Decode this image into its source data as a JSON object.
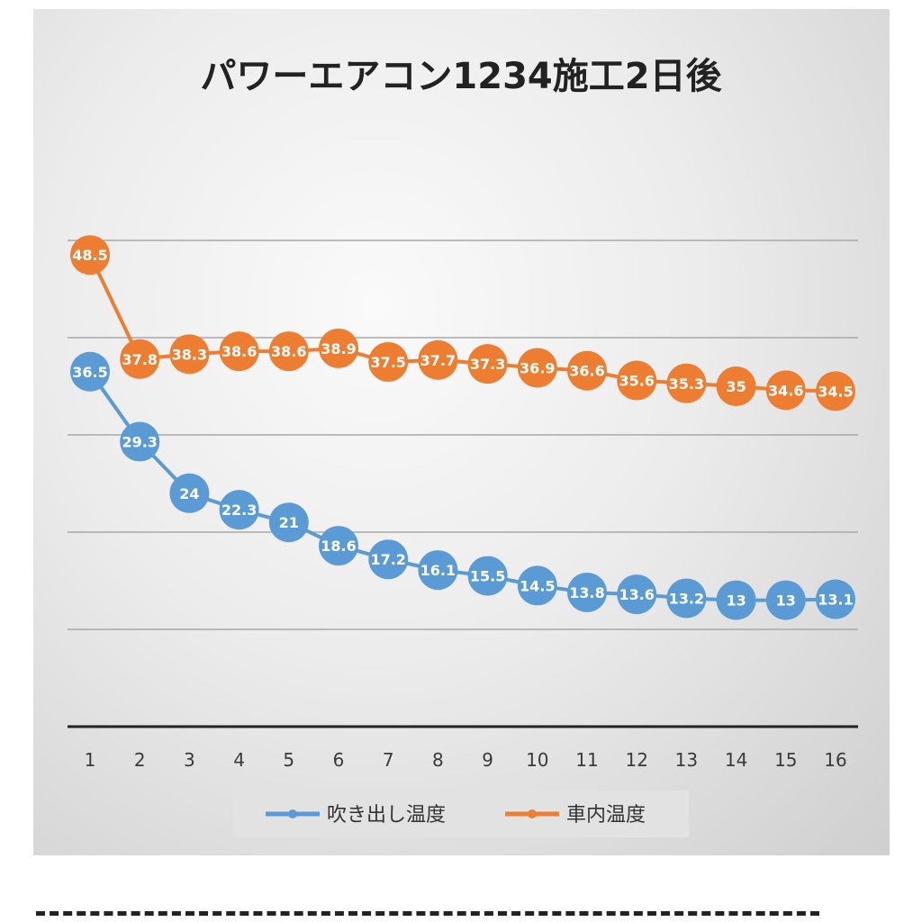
{
  "chart_data": {
    "type": "line",
    "title": "パワーエアコン1234施工2日後",
    "xlabel": "",
    "ylabel": "",
    "categories": [
      "1",
      "2",
      "3",
      "4",
      "5",
      "6",
      "7",
      "8",
      "9",
      "10",
      "11",
      "12",
      "13",
      "14",
      "15",
      "16"
    ],
    "ylim": [
      0,
      60
    ],
    "y_gridlines": [
      10,
      20,
      30,
      40,
      50
    ],
    "y_tick_labels_shown": false,
    "grid": true,
    "legend_position": "bottom",
    "series": [
      {
        "name": "吹き出し温度",
        "color": "#5b9bd5",
        "values": [
          36.5,
          29.3,
          24,
          22.3,
          21,
          18.6,
          17.2,
          16.1,
          15.5,
          14.5,
          13.8,
          13.6,
          13.2,
          13,
          13,
          13.1
        ]
      },
      {
        "name": "車内温度",
        "color": "#ed7d31",
        "values": [
          48.5,
          37.8,
          38.3,
          38.6,
          38.6,
          38.9,
          37.5,
          37.7,
          37.3,
          36.9,
          36.6,
          35.6,
          35.3,
          35,
          34.6,
          34.5
        ]
      }
    ]
  }
}
